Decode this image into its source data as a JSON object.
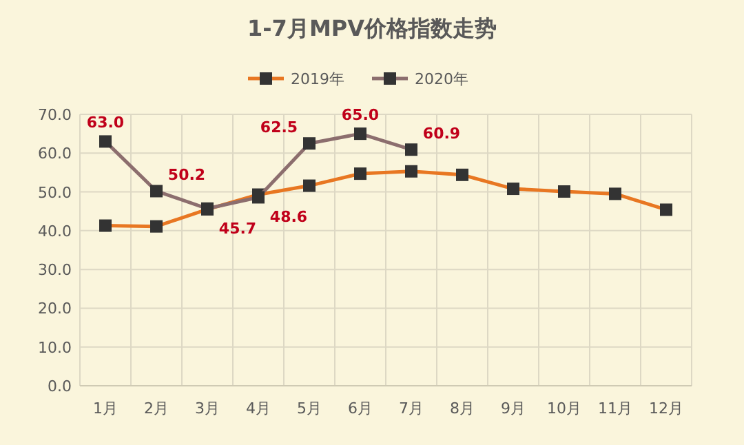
{
  "chart_data": {
    "type": "line",
    "title": "1-7月MPV价格指数走势",
    "categories": [
      "1月",
      "2月",
      "3月",
      "4月",
      "5月",
      "6月",
      "7月",
      "8月",
      "9月",
      "10月",
      "11月",
      "12月"
    ],
    "series": [
      {
        "name": "2019年",
        "color": "#e87722",
        "values": [
          41.3,
          41.1,
          45.5,
          49.3,
          51.6,
          54.7,
          55.3,
          54.4,
          50.8,
          50.1,
          49.5,
          45.4
        ]
      },
      {
        "name": "2020年",
        "color": "#8c6e6e",
        "values": [
          63.0,
          50.2,
          45.7,
          48.6,
          62.5,
          65.0,
          60.9,
          null,
          null,
          null,
          null,
          null
        ],
        "value_labels": [
          "63.0",
          "50.2",
          "45.7",
          "48.6",
          "62.5",
          "65.0",
          "60.9",
          null,
          null,
          null,
          null,
          null
        ]
      }
    ],
    "ylim": [
      0,
      70
    ],
    "yticks": [
      {
        "value": 0,
        "label": "0.0"
      },
      {
        "value": 10,
        "label": "10.0"
      },
      {
        "value": 20,
        "label": "20.0"
      },
      {
        "value": 30,
        "label": "30.0"
      },
      {
        "value": 40,
        "label": "40.0"
      },
      {
        "value": 50,
        "label": "50.0"
      },
      {
        "value": 60,
        "label": "60.0"
      },
      {
        "value": 70,
        "label": "70.0"
      }
    ],
    "grid": true,
    "legend": "top",
    "marker": "square",
    "line_style": "solid"
  }
}
